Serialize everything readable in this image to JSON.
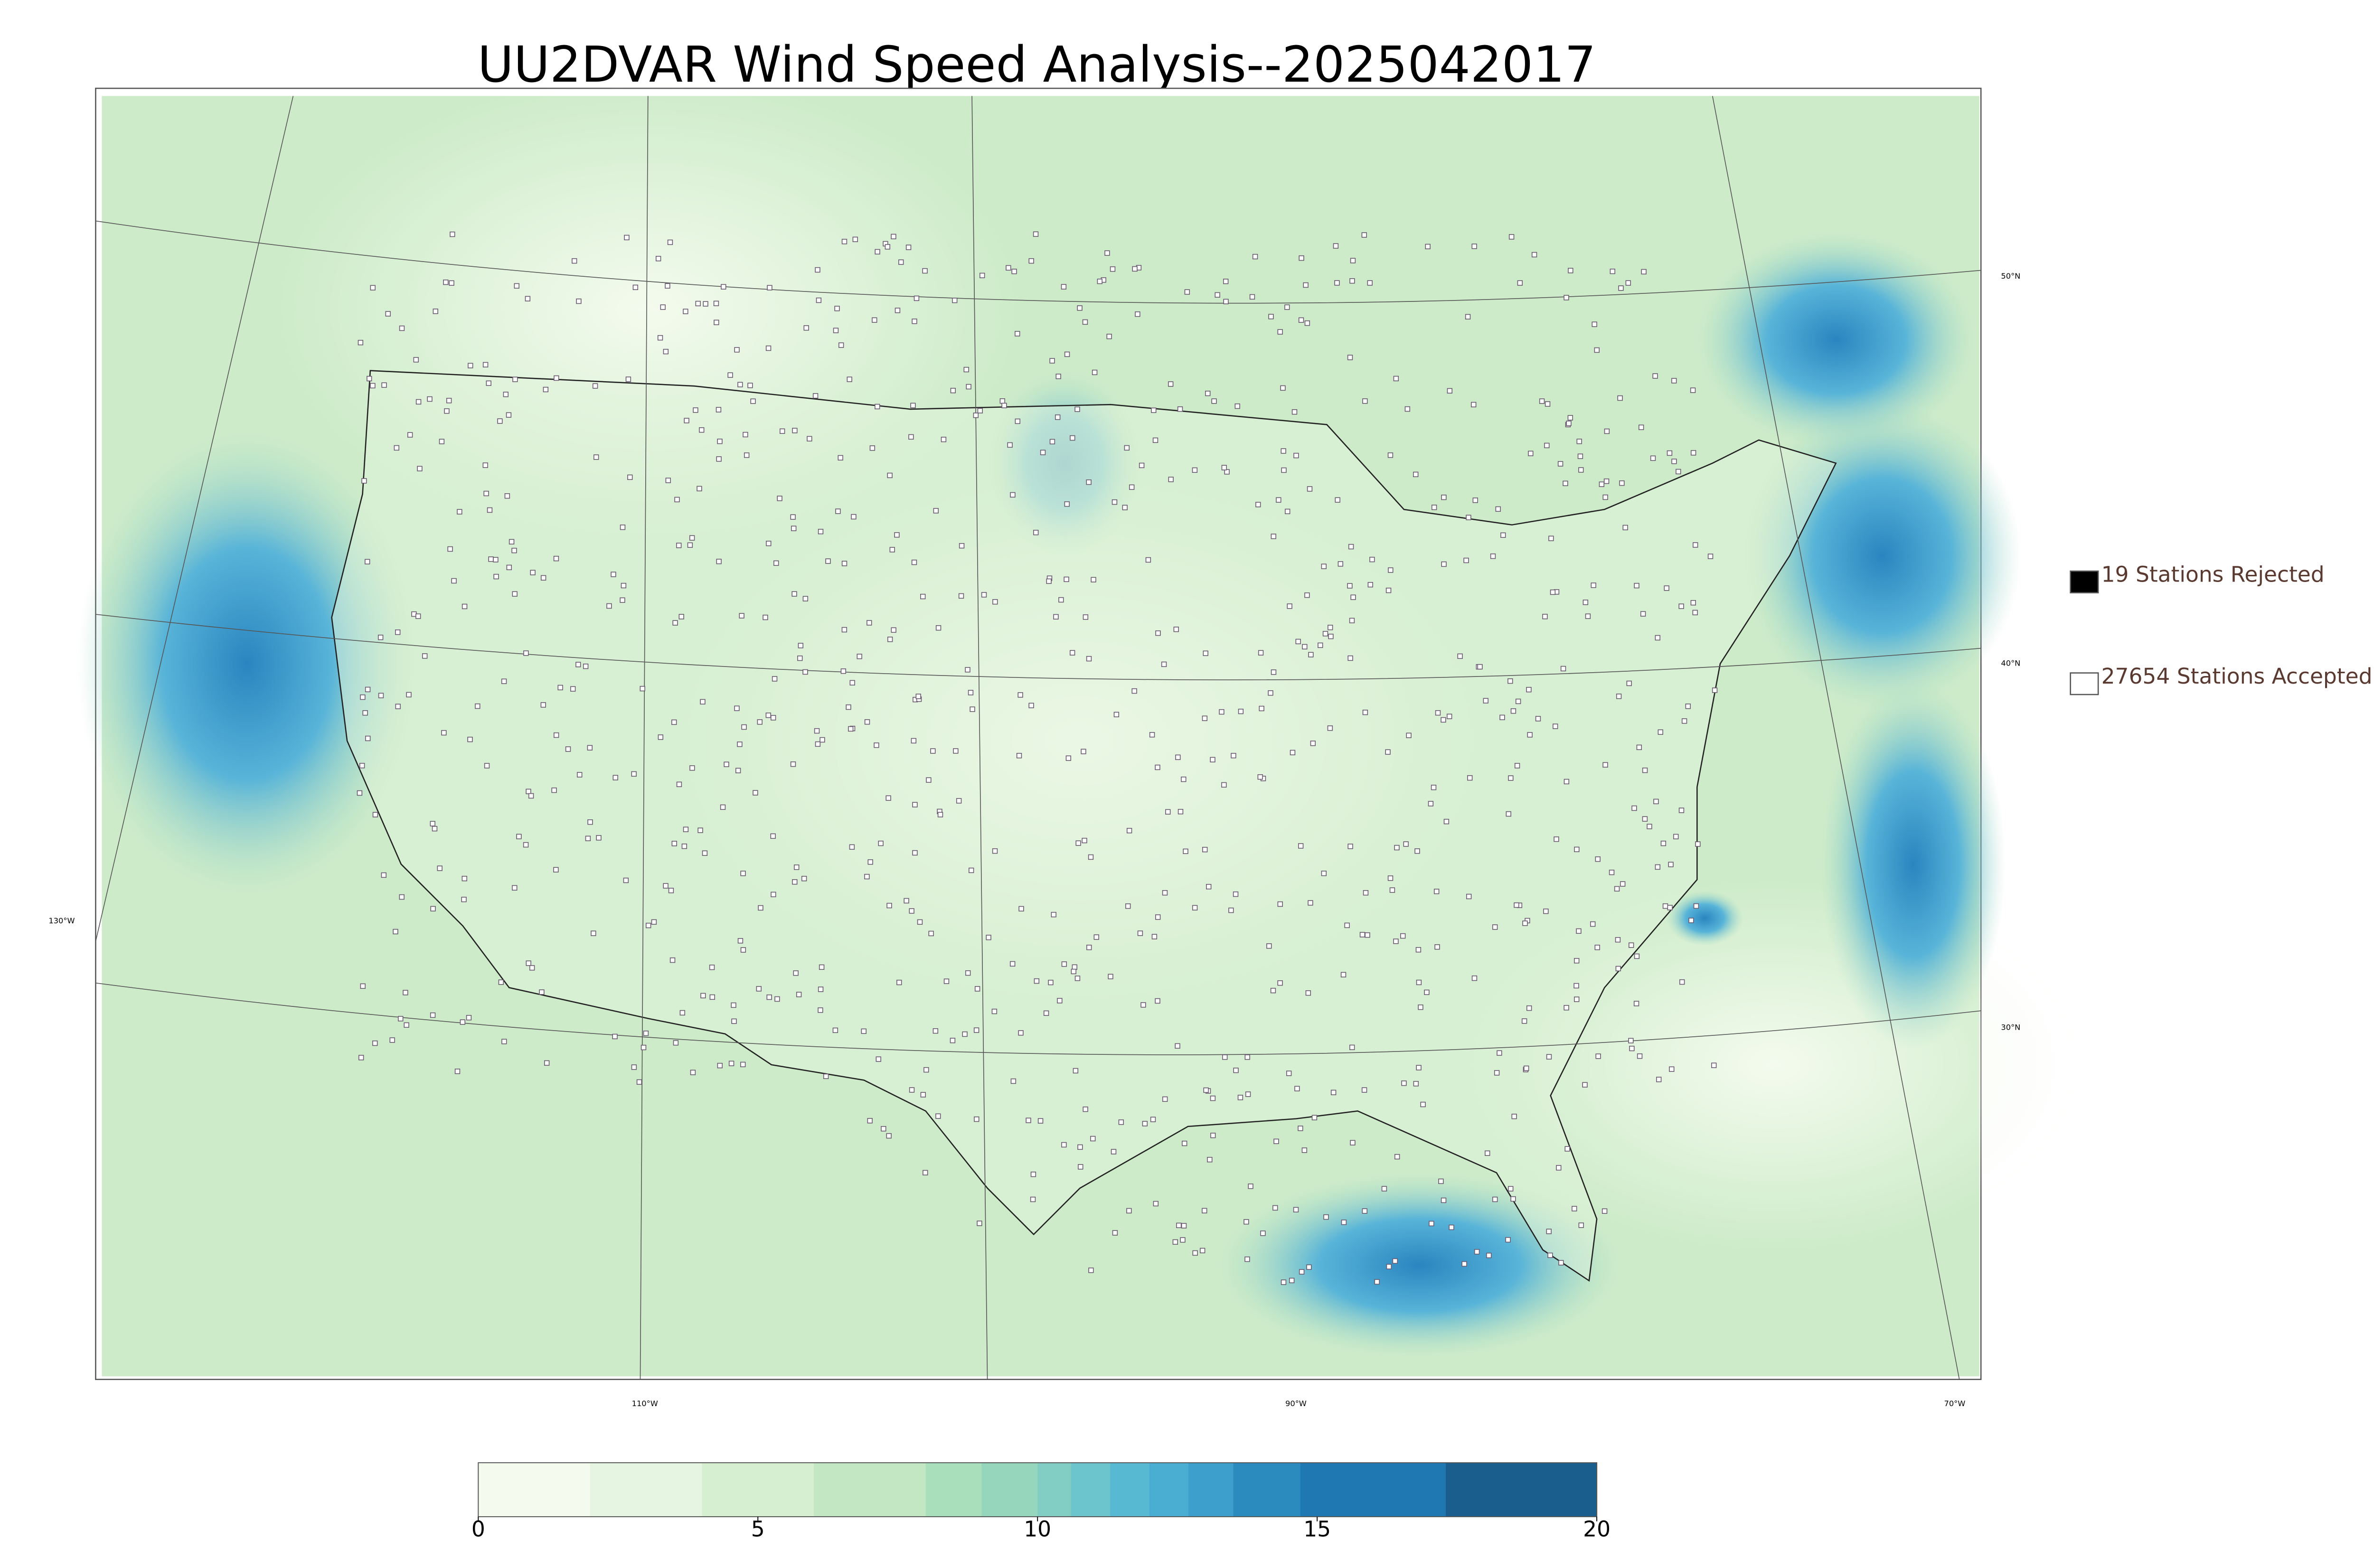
{
  "title": "UU2DVAR Wind Speed Analysis--2025042017",
  "legend": {
    "items": [
      {
        "label": "19 Stations Rejected",
        "color": "#000000"
      },
      {
        "label": "27654 Stations Accepted",
        "color": "#ffffff"
      }
    ]
  },
  "graticule": {
    "lat_labels": [
      "50°N",
      "40°N",
      "30°N"
    ],
    "lon_labels": [
      "130°W",
      "110°W",
      "90°W",
      "70°W"
    ]
  },
  "colorbar": {
    "range": [
      0,
      20
    ],
    "ticks": [
      0,
      5,
      10,
      15,
      20
    ],
    "levels": [
      0,
      2,
      4,
      6,
      8,
      9,
      10,
      10.6,
      11.3,
      12,
      12.7,
      13.5,
      14.7,
      17.3,
      20
    ],
    "colors": [
      "#f4fbee",
      "#e6f5e1",
      "#d6efd0",
      "#c2e7c2",
      "#aadfbb",
      "#95d6bd",
      "#82cec4",
      "#6cc4cc",
      "#58b9d3",
      "#4aadd2",
      "#3c9fcc",
      "#2b8bbf",
      "#1f78b2",
      "#1a5e8e"
    ]
  }
}
